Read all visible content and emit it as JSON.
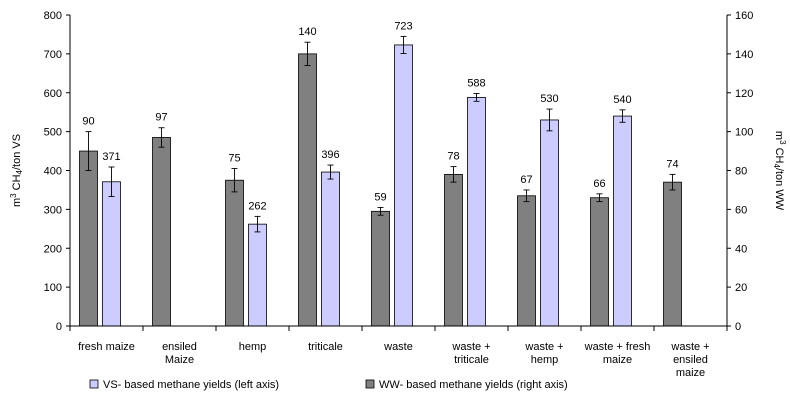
{
  "chart_data": {
    "type": "bar",
    "categories": [
      [
        "fresh maize"
      ],
      [
        "ensiled",
        "Maize"
      ],
      [
        "hemp"
      ],
      [
        "triticale"
      ],
      [
        "waste"
      ],
      [
        "waste +",
        "triticale"
      ],
      [
        "waste +",
        "hemp"
      ],
      [
        "waste + fresh",
        "maize"
      ],
      [
        "waste +",
        "ensiled",
        "maize"
      ]
    ],
    "series": [
      {
        "name": "WW- based methane yields (right axis)",
        "axis": "right",
        "color": "#808080",
        "values": [
          90,
          97,
          75,
          140,
          59,
          78,
          67,
          66,
          74
        ],
        "errors": [
          10,
          5,
          6,
          6,
          2,
          4,
          3,
          2,
          4
        ],
        "labels": [
          "90",
          "97",
          "75",
          "140",
          "59",
          "78",
          "67",
          "66",
          "74"
        ]
      },
      {
        "name": "VS- based methane yields (left axis)",
        "axis": "left",
        "color": "#ccccff",
        "values": [
          371,
          null,
          262,
          396,
          723,
          588,
          530,
          540,
          null
        ],
        "errors": [
          38,
          null,
          20,
          18,
          22,
          10,
          28,
          16,
          null
        ],
        "labels": [
          "371",
          "",
          "262",
          "396",
          "723",
          "588",
          "530",
          "540",
          ""
        ]
      }
    ],
    "left_axis": {
      "label": "m3 CH4/ton VS",
      "range": [
        0,
        800
      ],
      "ticks": [
        "0",
        "100",
        "200",
        "300",
        "400",
        "500",
        "600",
        "700",
        "800"
      ]
    },
    "right_axis": {
      "label": "m3 CH4/ton WW",
      "range": [
        0,
        160
      ],
      "ticks": [
        "0",
        "20",
        "40",
        "60",
        "80",
        "100",
        "120",
        "140",
        "160"
      ]
    },
    "legend_position": "bottom",
    "grid": false
  }
}
